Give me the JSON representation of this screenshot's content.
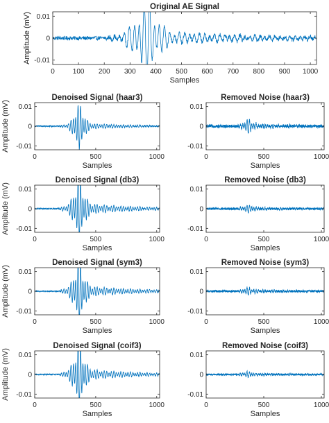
{
  "figure": {
    "line_color": "#0072BD",
    "axes_color": "#262626"
  },
  "chart_data": [
    {
      "id": "original",
      "type": "line",
      "title": "Original AE Signal",
      "xlabel": "Samples",
      "ylabel": "Amplitude (mV)",
      "xlim": [
        0,
        1024
      ],
      "ylim": [
        -0.012,
        0.012
      ],
      "xticks": [
        0,
        100,
        200,
        300,
        400,
        500,
        600,
        700,
        800,
        900,
        1000
      ],
      "xtick_labels": [
        "0",
        "100",
        "200",
        "300",
        "400",
        "500",
        "600",
        "700",
        "800",
        "900",
        "1000"
      ],
      "yticks": [
        -0.01,
        0,
        0.01
      ],
      "ytick_labels": [
        "-0.01",
        "0",
        "0.01"
      ],
      "signal": {
        "onset": 160,
        "peak": 360,
        "peak_amplitude": 0.0115,
        "noise_level": 0.0009,
        "tail_amplitude": 0.003
      }
    },
    {
      "id": "denoised-haar3",
      "type": "line",
      "title": "Denoised Signal (haar3)",
      "xlabel": "Samples",
      "ylabel": "Amplitude (mV)",
      "xlim": [
        0,
        1024
      ],
      "ylim": [
        -0.012,
        0.012
      ],
      "xticks": [
        0,
        500,
        1000
      ],
      "xtick_labels": [
        "0",
        "500",
        "1000"
      ],
      "yticks": [
        -0.01,
        0,
        0.01
      ],
      "ytick_labels": [
        "-0.01",
        "0",
        "0.01"
      ],
      "signal": {
        "onset": 150,
        "peak": 360,
        "peak_amplitude": 0.0085,
        "noise_level": 0.0003,
        "tail_amplitude": 0.0015
      }
    },
    {
      "id": "noise-haar3",
      "type": "line",
      "title": "Removed Noise (haar3)",
      "xlabel": "Samples",
      "ylabel": "",
      "xlim": [
        0,
        1024
      ],
      "ylim": [
        -0.012,
        0.012
      ],
      "xticks": [
        0,
        500,
        1000
      ],
      "xtick_labels": [
        "0",
        "500",
        "1000"
      ],
      "yticks": [
        -0.01,
        0,
        0.01
      ],
      "ytick_labels": [
        "-0.01",
        "0",
        "0.01"
      ],
      "signal": {
        "onset": 200,
        "peak": 360,
        "peak_amplitude": 0.0022,
        "noise_level": 0.0008,
        "tail_amplitude": 0.0009
      }
    },
    {
      "id": "denoised-db3",
      "type": "line",
      "title": "Denoised Signal (db3)",
      "xlabel": "Samples",
      "ylabel": "Amplitude (mV)",
      "xlim": [
        0,
        1024
      ],
      "ylim": [
        -0.012,
        0.012
      ],
      "xticks": [
        0,
        500,
        1000
      ],
      "xtick_labels": [
        "0",
        "500",
        "1000"
      ],
      "yticks": [
        -0.01,
        0,
        0.01
      ],
      "ytick_labels": [
        "-0.01",
        "0",
        "0.01"
      ],
      "signal": {
        "onset": 150,
        "peak": 360,
        "peak_amplitude": 0.0105,
        "noise_level": 0.0003,
        "tail_amplitude": 0.0028
      }
    },
    {
      "id": "noise-db3",
      "type": "line",
      "title": "Removed Noise (db3)",
      "xlabel": "Samples",
      "ylabel": "",
      "xlim": [
        0,
        1024
      ],
      "ylim": [
        -0.012,
        0.012
      ],
      "xticks": [
        0,
        500,
        1000
      ],
      "xtick_labels": [
        "0",
        "500",
        "1000"
      ],
      "yticks": [
        -0.01,
        0,
        0.01
      ],
      "ytick_labels": [
        "-0.01",
        "0",
        "0.01"
      ],
      "signal": {
        "onset": 200,
        "peak": 360,
        "peak_amplitude": 0.0012,
        "noise_level": 0.0006,
        "tail_amplitude": 0.0006
      }
    },
    {
      "id": "denoised-sym3",
      "type": "line",
      "title": "Denoised Signal (sym3)",
      "xlabel": "Samples",
      "ylabel": "Amplitude (mV)",
      "xlim": [
        0,
        1024
      ],
      "ylim": [
        -0.012,
        0.012
      ],
      "xticks": [
        0,
        500,
        1000
      ],
      "xtick_labels": [
        "0",
        "500",
        "1000"
      ],
      "yticks": [
        -0.01,
        0,
        0.01
      ],
      "ytick_labels": [
        "-0.01",
        "0",
        "0.01"
      ],
      "signal": {
        "onset": 150,
        "peak": 360,
        "peak_amplitude": 0.0105,
        "noise_level": 0.0003,
        "tail_amplitude": 0.0028
      }
    },
    {
      "id": "noise-sym3",
      "type": "line",
      "title": "Removed Noise (sym3)",
      "xlabel": "Samples",
      "ylabel": "",
      "xlim": [
        0,
        1024
      ],
      "ylim": [
        -0.012,
        0.012
      ],
      "xticks": [
        0,
        500,
        1000
      ],
      "xtick_labels": [
        "0",
        "500",
        "1000"
      ],
      "yticks": [
        -0.01,
        0,
        0.01
      ],
      "ytick_labels": [
        "-0.01",
        "0",
        "0.01"
      ],
      "signal": {
        "onset": 200,
        "peak": 360,
        "peak_amplitude": 0.0011,
        "noise_level": 0.0006,
        "tail_amplitude": 0.0006
      }
    },
    {
      "id": "denoised-coif3",
      "type": "line",
      "title": "Denoised Signal (coif3)",
      "xlabel": "Samples",
      "ylabel": "Amplitude (mV)",
      "xlim": [
        0,
        1024
      ],
      "ylim": [
        -0.012,
        0.012
      ],
      "xticks": [
        0,
        500,
        1000
      ],
      "xtick_labels": [
        "0",
        "500",
        "1000"
      ],
      "yticks": [
        -0.01,
        0,
        0.01
      ],
      "ytick_labels": [
        "-0.01",
        "0",
        "0.01"
      ],
      "signal": {
        "onset": 150,
        "peak": 360,
        "peak_amplitude": 0.0108,
        "noise_level": 0.0003,
        "tail_amplitude": 0.0028
      }
    },
    {
      "id": "noise-coif3",
      "type": "line",
      "title": "Removed Noise (coif3)",
      "xlabel": "Samples",
      "ylabel": "",
      "xlim": [
        0,
        1024
      ],
      "ylim": [
        -0.012,
        0.012
      ],
      "xticks": [
        0,
        500,
        1000
      ],
      "xtick_labels": [
        "0",
        "500",
        "1000"
      ],
      "yticks": [
        -0.01,
        0,
        0.01
      ],
      "ytick_labels": [
        "-0.01",
        "0",
        "0.01"
      ],
      "signal": {
        "onset": 200,
        "peak": 360,
        "peak_amplitude": 0.0009,
        "noise_level": 0.0005,
        "tail_amplitude": 0.0005
      }
    }
  ]
}
